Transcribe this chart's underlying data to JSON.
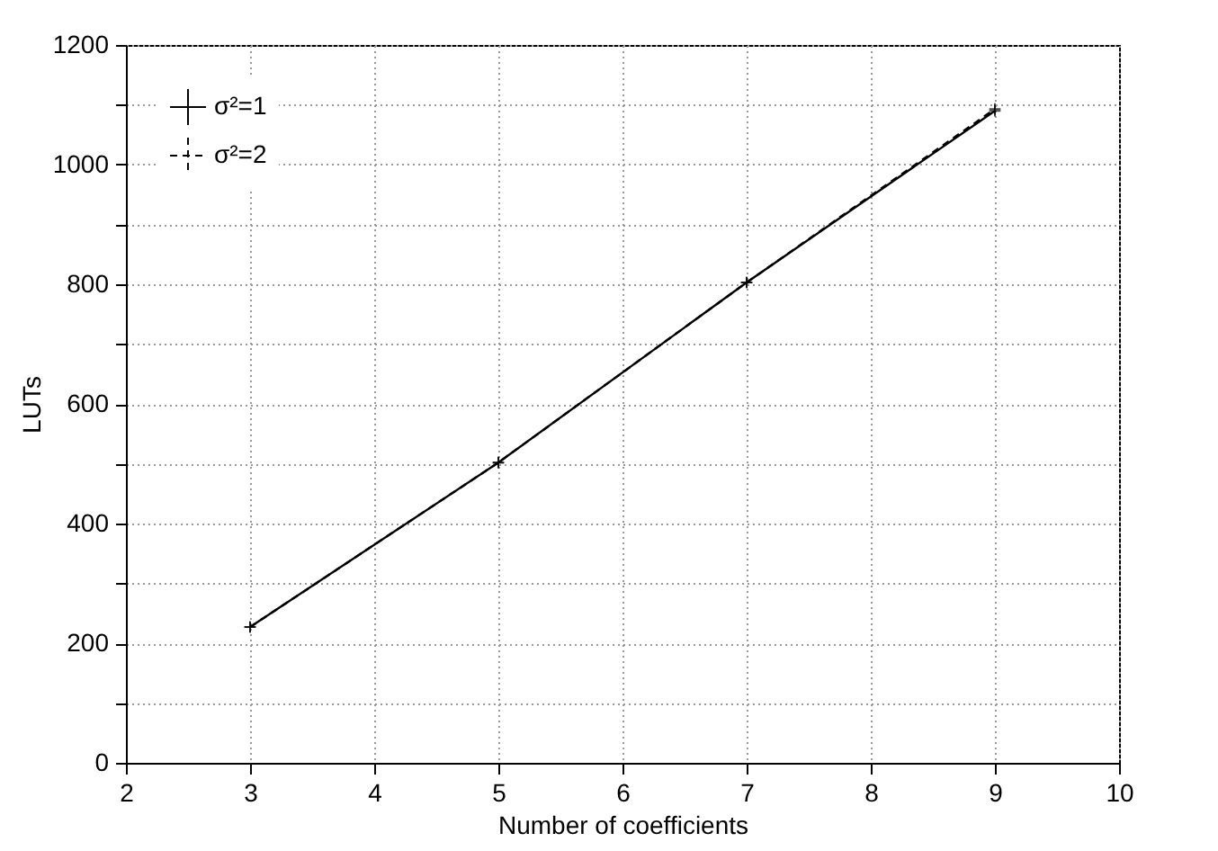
{
  "chart_data": {
    "type": "line",
    "xlabel": "Number of coefficients",
    "ylabel": "LUTs",
    "x": [
      3,
      5,
      7,
      9
    ],
    "series": [
      {
        "name": "σ²=1",
        "color": "#000000",
        "values": [
          227,
          502,
          803,
          1090
        ],
        "marker": "cross",
        "line_style": "solid"
      },
      {
        "name": "σ²=2",
        "color": "#000000",
        "values": [
          227,
          502,
          803,
          1093
        ],
        "marker": "cross",
        "line_style": "dashed"
      }
    ],
    "xlim": [
      2,
      10
    ],
    "xticks": [
      2,
      3,
      4,
      5,
      6,
      7,
      8,
      9,
      10
    ],
    "ylim": [
      0,
      1200
    ],
    "yticks": [
      0,
      {
        "value": 100,
        "label": null
      },
      200,
      {
        "value": 300,
        "label": null
      },
      400,
      {
        "value": 500,
        "label": null
      },
      600,
      {
        "value": 700,
        "label": null
      },
      800,
      {
        "value": 900,
        "label": null
      },
      1000,
      {
        "value": 1100,
        "label": null
      },
      1200
    ],
    "grid": true,
    "legend": "top left"
  }
}
